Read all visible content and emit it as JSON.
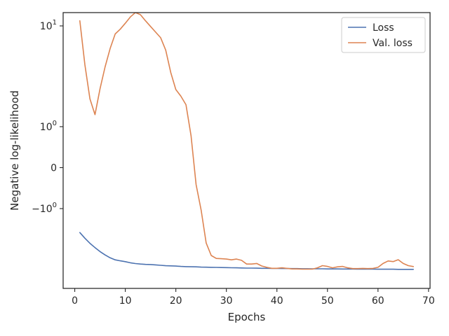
{
  "chart_data": {
    "type": "line",
    "xlabel": "Epochs",
    "ylabel": "Negative log-likelihood",
    "xlim": [
      -2.3,
      70.3
    ],
    "y_scale": "symlog",
    "x_ticks": [
      {
        "value": 0,
        "label": "0"
      },
      {
        "value": 10,
        "label": "10"
      },
      {
        "value": 20,
        "label": "20"
      },
      {
        "value": 30,
        "label": "30"
      },
      {
        "value": 40,
        "label": "40"
      },
      {
        "value": 50,
        "label": "50"
      },
      {
        "value": 60,
        "label": "60"
      },
      {
        "value": 70,
        "label": "70"
      }
    ],
    "y_ticks": [
      {
        "value": 10,
        "label": "10¹",
        "base": "10",
        "exp": "1"
      },
      {
        "value": 1,
        "label": "10⁰",
        "base": "10",
        "exp": "0"
      },
      {
        "value": 0,
        "label": "0",
        "base": "0",
        "exp": ""
      },
      {
        "value": -1,
        "label": "−10⁰",
        "base": "−10",
        "exp": "0"
      }
    ],
    "grid": false,
    "legend_position": "top-right",
    "x": [
      1,
      2,
      3,
      4,
      5,
      6,
      7,
      8,
      9,
      10,
      11,
      12,
      13,
      14,
      15,
      16,
      17,
      18,
      19,
      20,
      21,
      22,
      23,
      24,
      25,
      26,
      27,
      28,
      29,
      30,
      31,
      32,
      33,
      34,
      35,
      36,
      37,
      38,
      39,
      40,
      41,
      42,
      43,
      44,
      45,
      46,
      47,
      48,
      49,
      50,
      51,
      52,
      53,
      54,
      55,
      56,
      57,
      58,
      59,
      60,
      61,
      62,
      63,
      64,
      65,
      66,
      67
    ],
    "series": [
      {
        "name": "Loss",
        "color": "#4c72b0",
        "values": [
          -2.0,
          -2.3,
          -2.6,
          -2.87,
          -3.14,
          -3.38,
          -3.6,
          -3.76,
          -3.84,
          -3.91,
          -4.0,
          -4.07,
          -4.11,
          -4.14,
          -4.15,
          -4.18,
          -4.22,
          -4.26,
          -4.27,
          -4.29,
          -4.32,
          -4.34,
          -4.35,
          -4.36,
          -4.38,
          -4.39,
          -4.4,
          -4.41,
          -4.42,
          -4.43,
          -4.44,
          -4.45,
          -4.46,
          -4.47,
          -4.47,
          -4.48,
          -4.49,
          -4.49,
          -4.5,
          -4.5,
          -4.51,
          -4.51,
          -4.52,
          -4.52,
          -4.53,
          -4.53,
          -4.54,
          -4.54,
          -4.54,
          -4.55,
          -4.55,
          -4.55,
          -4.56,
          -4.56,
          -4.56,
          -4.57,
          -4.57,
          -4.57,
          -4.57,
          -4.58,
          -4.58,
          -4.58,
          -4.58,
          -4.59,
          -4.59,
          -4.59,
          -4.59
        ]
      },
      {
        "name": "Val. loss",
        "color": "#dd8452",
        "values": [
          11.0,
          4.7,
          2.2,
          1.45,
          2.8,
          4.5,
          6.5,
          8.6,
          9.4,
          10.5,
          11.8,
          12.8,
          12.3,
          11.0,
          9.9,
          8.9,
          8.0,
          6.3,
          4.0,
          2.75,
          2.35,
          1.9,
          0.72,
          -0.33,
          -1.05,
          -2.58,
          -3.42,
          -3.65,
          -3.67,
          -3.7,
          -3.76,
          -3.7,
          -3.8,
          -4.11,
          -4.11,
          -4.06,
          -4.28,
          -4.4,
          -4.49,
          -4.49,
          -4.45,
          -4.5,
          -4.55,
          -4.55,
          -4.57,
          -4.57,
          -4.57,
          -4.45,
          -4.25,
          -4.32,
          -4.45,
          -4.36,
          -4.32,
          -4.45,
          -4.52,
          -4.52,
          -4.5,
          -4.52,
          -4.5,
          -4.4,
          -4.06,
          -3.85,
          -3.9,
          -3.75,
          -4.06,
          -4.25,
          -4.33
        ]
      }
    ]
  }
}
